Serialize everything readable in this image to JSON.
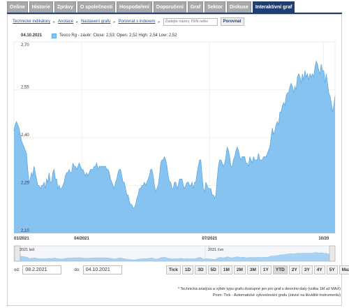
{
  "tabs": [
    {
      "label": "Online",
      "active": false
    },
    {
      "label": "Historie",
      "active": false
    },
    {
      "label": "Zprávy",
      "active": false
    },
    {
      "label": "O společnosti",
      "active": false
    },
    {
      "label": "Hospodaření",
      "active": false
    },
    {
      "label": "Doporučení",
      "active": false
    },
    {
      "label": "Graf",
      "active": false
    },
    {
      "label": "Sektor",
      "active": false
    },
    {
      "label": "Diskuse",
      "active": false
    },
    {
      "label": "Interaktivní graf",
      "active": true
    }
  ],
  "toolbar": {
    "tech_indicators": "Technické indikátory",
    "annotations": "Anotace",
    "chart_settings": "Nastavení grafu",
    "compare_index": "Porovnat s indexem",
    "search_placeholder": "Zadejte název, ISIN nebo",
    "compare_button": "Porovnat"
  },
  "legend": {
    "date": "04.10.2021",
    "text": "Tesco Rg - závěr: Close: 2,53; Open: 2,52 High: 2,54 Low: 2,52"
  },
  "navigator": {
    "label_left": "2021 led",
    "label_right": "2021 čvo"
  },
  "date_range": {
    "from_label": "od:",
    "from_value": "08.2.2021",
    "to_label": "do:",
    "to_value": "04.10.2021"
  },
  "range_buttons": [
    "Tick",
    "1D",
    "3D",
    "5D",
    "1M",
    "2M",
    "3M",
    "1Y",
    "YTD",
    "2Y",
    "3Y",
    "4Y",
    "5Y",
    "Max"
  ],
  "active_range": "YTD",
  "footnote": [
    "* Technická analýza a výběr typu grafu dostupné jen pro graf s denními daty (volba 1M až MAX)",
    "Pozn: Tick - Automatické vykreslování grafu (závisí na likviditě instrumentu)"
  ],
  "colors": {
    "area_fill": "#86c3f0",
    "area_line": "#5fa9e0",
    "tab_active": "#1f3f73",
    "tab_inactive": "#a9a9a9"
  },
  "chart_data": {
    "type": "area",
    "title": "",
    "xlabel": "",
    "ylabel": "",
    "ylim": [
      2.1,
      2.7
    ],
    "yticks": [
      2.1,
      2.25,
      2.4,
      2.55,
      2.7
    ],
    "ytick_labels": [
      "2,10",
      "2,25",
      "2,40",
      "2,55",
      "2,70"
    ],
    "xticks": [
      {
        "label": "01/2021",
        "index": 0
      },
      {
        "label": "04/2021",
        "index": 54
      },
      {
        "label": "07/2021",
        "index": 156
      },
      {
        "label": "10/20",
        "index": 247
      }
    ],
    "series": [
      {
        "values": [
          2.42,
          2.44,
          2.45,
          2.44,
          2.43,
          2.41,
          2.39,
          2.38,
          2.37,
          2.36,
          2.35,
          2.3,
          2.26,
          2.27,
          2.29,
          2.28,
          2.31,
          2.29,
          2.27,
          2.25,
          2.25,
          2.24,
          2.25,
          2.25,
          2.26,
          2.24,
          2.27,
          2.26,
          2.29,
          2.26,
          2.26,
          2.29,
          2.3,
          2.27,
          2.27,
          2.24,
          2.25,
          2.24,
          2.24,
          2.25,
          2.26,
          2.28,
          2.29,
          2.29,
          2.3,
          2.29,
          2.29,
          2.32,
          2.31,
          2.31,
          2.3,
          2.31,
          2.32,
          2.31,
          2.3,
          2.3,
          2.29,
          2.28,
          2.29,
          2.28,
          2.29,
          2.3,
          2.3,
          2.3,
          2.31,
          2.31,
          2.32,
          2.3,
          2.31,
          2.31,
          2.31,
          2.31,
          2.31,
          2.31,
          2.3,
          2.3,
          2.29,
          2.27,
          2.26,
          2.25,
          2.24,
          2.26,
          2.27,
          2.29,
          2.3,
          2.3,
          2.28,
          2.26,
          2.26,
          2.24,
          2.22,
          2.22,
          2.2,
          2.19,
          2.19,
          2.18,
          2.18,
          2.19,
          2.21,
          2.22,
          2.24,
          2.24,
          2.25,
          2.25,
          2.26,
          2.25,
          2.26,
          2.27,
          2.28,
          2.3,
          2.3,
          2.28,
          2.25,
          2.23,
          2.24,
          2.25,
          2.28,
          2.32,
          2.33,
          2.33,
          2.34,
          2.33,
          2.31,
          2.28,
          2.26,
          2.26,
          2.24,
          2.24,
          2.26,
          2.26,
          2.24,
          2.25,
          2.27,
          2.27,
          2.27,
          2.25,
          2.24,
          2.25,
          2.26,
          2.26,
          2.25,
          2.25,
          2.26,
          2.24,
          2.26,
          2.26,
          2.29,
          2.31,
          2.33,
          2.33,
          2.28,
          2.24,
          2.23,
          2.26,
          2.25,
          2.24,
          2.24,
          2.24,
          2.22,
          2.22,
          2.21,
          2.22,
          2.27,
          2.31,
          2.33,
          2.33,
          2.32,
          2.31,
          2.32,
          2.34,
          2.37,
          2.36,
          2.34,
          2.31,
          2.31,
          2.33,
          2.34,
          2.36,
          2.37,
          2.36,
          2.34,
          2.33,
          2.34,
          2.34,
          2.34,
          2.32,
          2.32,
          2.31,
          2.34,
          2.33,
          2.32,
          2.34,
          2.33,
          2.33,
          2.33,
          2.35,
          2.33,
          2.33,
          2.33,
          2.34,
          2.34,
          2.34,
          2.35,
          2.36,
          2.37,
          2.4,
          2.43,
          2.41,
          2.42,
          2.44,
          2.45,
          2.44,
          2.48,
          2.48,
          2.5,
          2.51,
          2.5,
          2.53,
          2.54,
          2.54,
          2.56,
          2.57,
          2.56,
          2.54,
          2.56,
          2.55,
          2.59,
          2.6,
          2.59,
          2.57,
          2.6,
          2.58,
          2.61,
          2.59,
          2.6,
          2.58,
          2.6,
          2.59,
          2.6,
          2.59,
          2.62,
          2.64,
          2.63,
          2.61,
          2.6,
          2.63,
          2.61,
          2.61,
          2.57,
          2.6,
          2.57,
          2.54,
          2.53,
          2.51,
          2.48,
          2.5,
          2.53
        ]
      }
    ]
  }
}
